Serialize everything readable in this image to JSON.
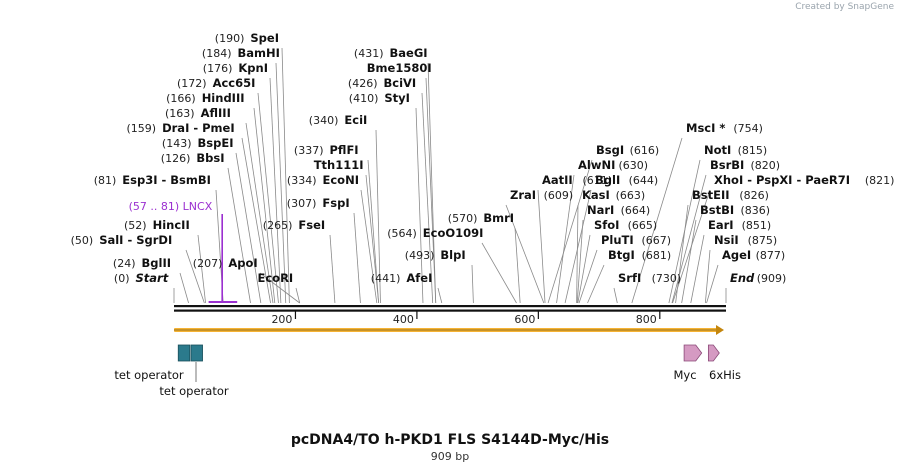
{
  "branding": "Created by SnapGene",
  "title": "pcDNA4/TO h-PKD1 FLS S4144D-Myc/His",
  "subtitle": "909 bp",
  "ruler": {
    "length": 909,
    "ticks": [
      "200",
      "400",
      "600",
      "800"
    ]
  },
  "enzymes": [
    {
      "pos": 0,
      "label": "(0)",
      "name": "Start",
      "italic": true
    },
    {
      "pos": 24,
      "label": "(24)",
      "name": "BglII"
    },
    {
      "pos": 50,
      "label": "(50)",
      "name": "SalI - SgrDI"
    },
    {
      "pos": 52,
      "label": "(52)",
      "name": "HincII"
    },
    {
      "pos": 81,
      "label": "(81)",
      "name": "Esp3I - BsmBI"
    },
    {
      "pos": 126,
      "label": "(126)",
      "name": "BbsI"
    },
    {
      "pos": 143,
      "label": "(143)",
      "name": "BspEI"
    },
    {
      "pos": 159,
      "label": "(159)",
      "name": "DraI - PmeI"
    },
    {
      "pos": 163,
      "label": "(163)",
      "name": "AflIII"
    },
    {
      "pos": 166,
      "label": "(166)",
      "name": "HindIII"
    },
    {
      "pos": 172,
      "label": "(172)",
      "name": "Acc65I"
    },
    {
      "pos": 176,
      "label": "(176)",
      "name": "KpnI"
    },
    {
      "pos": 184,
      "label": "(184)",
      "name": "BamHI"
    },
    {
      "pos": 190,
      "label": "(190)",
      "name": "SpeI"
    },
    {
      "pos": 207,
      "label": "(207)",
      "name": "ApoI"
    },
    {
      "pos": 207,
      "label": "",
      "name": "EcoRI"
    },
    {
      "pos": 265,
      "label": "(265)",
      "name": "FseI"
    },
    {
      "pos": 307,
      "label": "(307)",
      "name": "FspI"
    },
    {
      "pos": 334,
      "label": "(334)",
      "name": "EcoNI"
    },
    {
      "pos": 337,
      "label": "(337)",
      "name": "PflFI"
    },
    {
      "pos": 337,
      "label": "",
      "name": "Tth111I"
    },
    {
      "pos": 340,
      "label": "(340)",
      "name": "EciI"
    },
    {
      "pos": 410,
      "label": "(410)",
      "name": "StyI"
    },
    {
      "pos": 426,
      "label": "(426)",
      "name": "BciVI"
    },
    {
      "pos": 431,
      "label": "",
      "name": "Bme1580I"
    },
    {
      "pos": 431,
      "label": "(431)",
      "name": "BaeGI"
    },
    {
      "pos": 441,
      "label": "(441)",
      "name": "AfeI"
    },
    {
      "pos": 493,
      "label": "(493)",
      "name": "BlpI"
    },
    {
      "pos": 564,
      "label": "(564)",
      "name": "EcoO109I"
    },
    {
      "pos": 570,
      "label": "(570)",
      "name": "BmrI"
    },
    {
      "pos": 609,
      "label": "(609)",
      "name": "ZraI"
    },
    {
      "pos": 611,
      "label": "(611)",
      "name": "AatII"
    },
    {
      "pos": 616,
      "label": "(616)",
      "name": "BsgI"
    },
    {
      "pos": 630,
      "label": "(630)",
      "name": "AlwNI"
    },
    {
      "pos": 644,
      "label": "(644)",
      "name": "BglI"
    },
    {
      "pos": 663,
      "label": "(663)",
      "name": "KasI"
    },
    {
      "pos": 664,
      "label": "(664)",
      "name": "NarI"
    },
    {
      "pos": 665,
      "label": "(665)",
      "name": "SfoI"
    },
    {
      "pos": 667,
      "label": "(667)",
      "name": "PluTI"
    },
    {
      "pos": 681,
      "label": "(681)",
      "name": "BtgI"
    },
    {
      "pos": 730,
      "label": "(730)",
      "name": "SrfI"
    },
    {
      "pos": 754,
      "label": "(754)",
      "name": "MscI *"
    },
    {
      "pos": 815,
      "label": "(815)",
      "name": "NotI"
    },
    {
      "pos": 820,
      "label": "(820)",
      "name": "BsrBI"
    },
    {
      "pos": 821,
      "label": "(821)",
      "name": "XhoI - PspXI - PaeR7I"
    },
    {
      "pos": 826,
      "label": "(826)",
      "name": "BstEII"
    },
    {
      "pos": 836,
      "label": "(836)",
      "name": "BstBI"
    },
    {
      "pos": 851,
      "label": "(851)",
      "name": "EarI"
    },
    {
      "pos": 875,
      "label": "(875)",
      "name": "NsiI"
    },
    {
      "pos": 877,
      "label": "(877)",
      "name": "AgeI"
    },
    {
      "pos": 909,
      "label": "(909)",
      "name": "End",
      "italic": true
    }
  ],
  "primer": {
    "label": "(57 .. 81)",
    "name": "LNCX",
    "start": 57,
    "end": 81,
    "color": "#9b30d0"
  },
  "features": [
    {
      "name": "tet operator",
      "type": "box",
      "start": 7,
      "end": 26,
      "color": "#2b7a8c"
    },
    {
      "name": "tet operator",
      "type": "box",
      "start": 28,
      "end": 47,
      "color": "#2b7a8c"
    },
    {
      "name": "Myc",
      "type": "arrow",
      "start": 840,
      "end": 869,
      "color": "#d59ac2"
    },
    {
      "name": "6xHis",
      "type": "arrow",
      "start": 880,
      "end": 898,
      "color": "#d59ac2"
    }
  ],
  "orf_color": "#f5b335"
}
